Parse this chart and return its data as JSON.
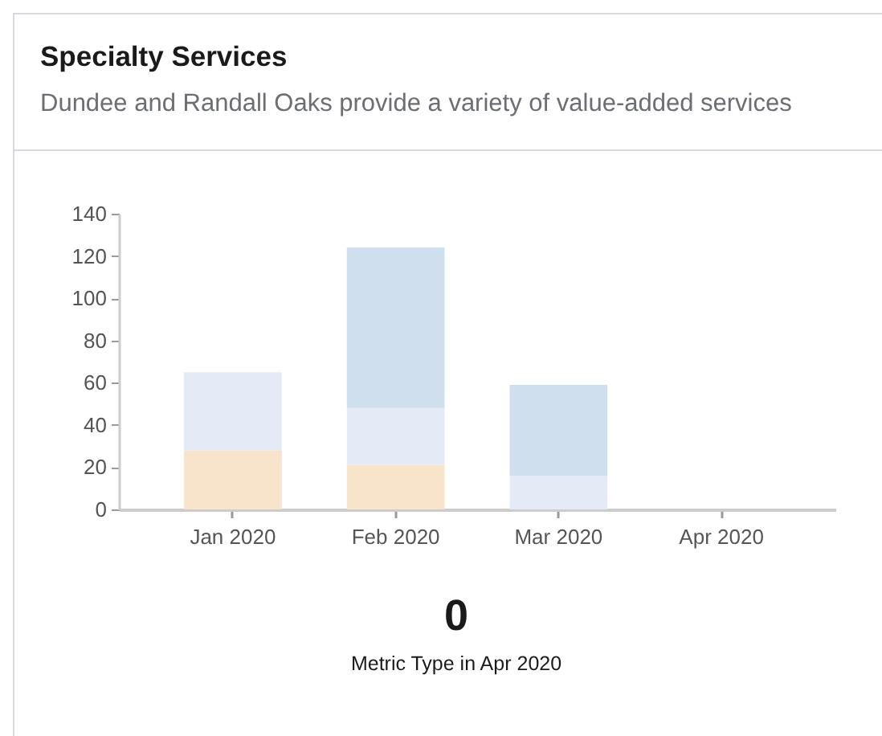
{
  "chart_data": {
    "type": "bar",
    "title": "Specialty Services",
    "subtitle": "Dundee and Randall Oaks provide a variety of value-added services",
    "categories": [
      "Jan 2020",
      "Feb 2020",
      "Mar 2020",
      "Apr 2020"
    ],
    "series": [
      {
        "color": "#f8e3cb",
        "values": [
          28,
          21,
          0,
          0
        ]
      },
      {
        "color": "#e4ebf7",
        "values": [
          37,
          27,
          16,
          0
        ]
      },
      {
        "color": "#cfdfed",
        "values": [
          0,
          76,
          43,
          0
        ]
      }
    ],
    "stacked": true,
    "ylim": [
      0,
      140
    ],
    "yticks": [
      0,
      20,
      40,
      60,
      80,
      100,
      120,
      140
    ],
    "annotations": [
      "0",
      "Metric Type in Apr 2020"
    ]
  }
}
